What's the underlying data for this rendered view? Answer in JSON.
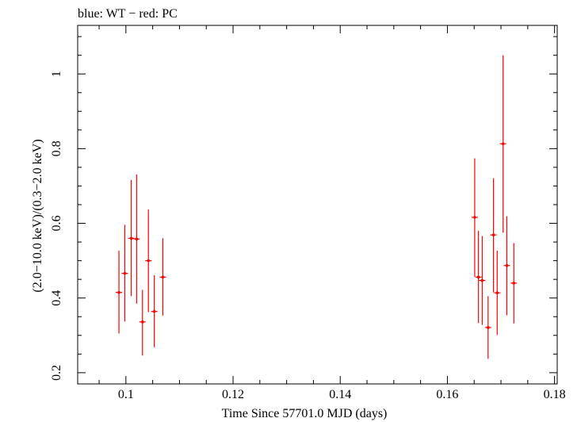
{
  "chart_data": {
    "type": "scatter",
    "title": "blue: WT − red: PC",
    "xlabel": "Time Since 57701.0 MJD (days)",
    "ylabel": "(2.0−10.0 keV)/(0.3−2.0 keV)",
    "xlim": [
      0.091,
      0.1805
    ],
    "ylim": [
      0.17,
      1.13
    ],
    "xticks": [
      0.1,
      0.12,
      0.14,
      0.16,
      0.18
    ],
    "xtick_labels": [
      "0.1",
      "0.12",
      "0.14",
      "0.16",
      "0.18"
    ],
    "yticks": [
      0.2,
      0.4,
      0.6,
      0.8,
      1.0
    ],
    "ytick_labels": [
      "0.2",
      "0.4",
      "0.6",
      "0.8",
      "1"
    ],
    "grid": false,
    "series": [
      {
        "name": "PC",
        "color": "#ff0000",
        "points": [
          {
            "x": 0.0987,
            "y": 0.415,
            "yerr_low": 0.305,
            "yerr_high": 0.527
          },
          {
            "x": 0.0998,
            "y": 0.466,
            "yerr_low": 0.337,
            "yerr_high": 0.596
          },
          {
            "x": 0.101,
            "y": 0.56,
            "yerr_low": 0.405,
            "yerr_high": 0.716
          },
          {
            "x": 0.102,
            "y": 0.558,
            "yerr_low": 0.385,
            "yerr_high": 0.731
          },
          {
            "x": 0.1031,
            "y": 0.336,
            "yerr_low": 0.246,
            "yerr_high": 0.422
          },
          {
            "x": 0.1042,
            "y": 0.5,
            "yerr_low": 0.362,
            "yerr_high": 0.637
          },
          {
            "x": 0.1053,
            "y": 0.364,
            "yerr_low": 0.268,
            "yerr_high": 0.461
          },
          {
            "x": 0.1069,
            "y": 0.456,
            "yerr_low": 0.353,
            "yerr_high": 0.56
          },
          {
            "x": 0.1651,
            "y": 0.616,
            "yerr_low": 0.457,
            "yerr_high": 0.774
          },
          {
            "x": 0.1658,
            "y": 0.456,
            "yerr_low": 0.333,
            "yerr_high": 0.58
          },
          {
            "x": 0.1665,
            "y": 0.447,
            "yerr_low": 0.328,
            "yerr_high": 0.566
          },
          {
            "x": 0.1676,
            "y": 0.321,
            "yerr_low": 0.237,
            "yerr_high": 0.405
          },
          {
            "x": 0.1686,
            "y": 0.569,
            "yerr_low": 0.415,
            "yerr_high": 0.721
          },
          {
            "x": 0.1693,
            "y": 0.414,
            "yerr_low": 0.301,
            "yerr_high": 0.527
          },
          {
            "x": 0.1704,
            "y": 0.813,
            "yerr_low": 0.575,
            "yerr_high": 1.05
          },
          {
            "x": 0.1711,
            "y": 0.487,
            "yerr_low": 0.354,
            "yerr_high": 0.619
          },
          {
            "x": 0.1724,
            "y": 0.44,
            "yerr_low": 0.332,
            "yerr_high": 0.547
          }
        ]
      }
    ]
  }
}
